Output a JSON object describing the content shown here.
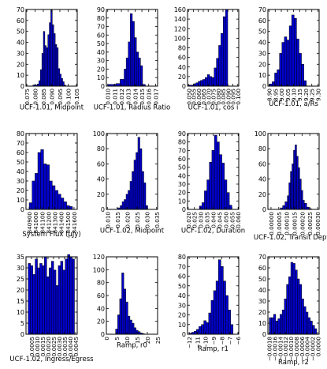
{
  "chart_data": [
    {
      "type": "bar",
      "xlabel": "UCF-1.01, Midpoint",
      "xlim": [
        0.0745,
        0.1055
      ],
      "ylim": [
        0,
        70
      ],
      "yticks": [
        "0",
        "10",
        "20",
        "30",
        "40",
        "50",
        "60",
        "70"
      ],
      "xticks": [
        "0.075",
        "0.080",
        "0.085",
        "0.090",
        "0.095",
        "0.100",
        "0.105"
      ],
      "xtick_values": [
        0.075,
        0.08,
        0.085,
        0.09,
        0.095,
        0.1,
        0.105
      ],
      "bin_edges": [
        0.0787,
        0.0814,
        0.0823,
        0.0832,
        0.0841,
        0.085,
        0.0859,
        0.0868,
        0.0877,
        0.0886,
        0.0895,
        0.0904,
        0.0913,
        0.0922,
        0.0931,
        0.094,
        0.0949,
        0.0958,
        0.0967,
        0.0976,
        0.0985
      ],
      "values": [
        1,
        2,
        5,
        15,
        30,
        50,
        37,
        35,
        47,
        58,
        70,
        56,
        48,
        38,
        35,
        16,
        11,
        7,
        4,
        1
      ]
    },
    {
      "type": "bar",
      "xlabel": "UCF-1.01, Radius Ratio",
      "xlim": [
        0.0098,
        0.0173
      ],
      "ylim": [
        0,
        90
      ],
      "yticks": [
        "0",
        "10",
        "20",
        "30",
        "40",
        "50",
        "60",
        "70",
        "80",
        "90"
      ],
      "xticks": [
        "0.010",
        "0.011",
        "0.012",
        "0.013",
        "0.014",
        "0.015",
        "0.016",
        "0.017"
      ],
      "xtick_values": [
        0.01,
        0.011,
        0.012,
        0.013,
        0.014,
        0.015,
        0.016,
        0.017
      ],
      "bin_edges": [
        0.01,
        0.0112,
        0.0118,
        0.0124,
        0.0127,
        0.013,
        0.0133,
        0.0136,
        0.0139,
        0.0142,
        0.0145,
        0.0148,
        0.0151,
        0.0155
      ],
      "values": [
        2,
        3,
        8,
        20,
        33,
        52,
        85,
        76,
        57,
        40,
        33,
        24,
        2
      ]
    },
    {
      "type": "bar",
      "xlabel": "UCF-1.01, cos i",
      "xlim": [
        0.049,
        0.101
      ],
      "ylim": [
        0,
        160
      ],
      "yticks": [
        "0",
        "20",
        "40",
        "60",
        "80",
        "100",
        "120",
        "140",
        "160"
      ],
      "xticks": [
        "0.050",
        "0.055",
        "0.060",
        "0.065",
        "0.070",
        "0.075",
        "0.080",
        "0.085",
        "0.090",
        "0.095",
        "0.100"
      ],
      "xtick_values": [
        0.05,
        0.055,
        0.06,
        0.065,
        0.07,
        0.075,
        0.08,
        0.085,
        0.09,
        0.095,
        0.1
      ],
      "bin_edges": [
        0.05,
        0.0553,
        0.0576,
        0.0599,
        0.0622,
        0.0645,
        0.0668,
        0.0691,
        0.0714,
        0.0737,
        0.076,
        0.0783,
        0.0806,
        0.0829,
        0.0852,
        0.0875,
        0.0898
      ],
      "values": [
        2,
        5,
        7,
        10,
        12,
        14,
        18,
        24,
        20,
        18,
        38,
        58,
        85,
        110,
        145,
        160
      ]
    },
    {
      "type": "bar",
      "xlabel": "UCF-1.01, a/Rs",
      "xlim": [
        8.89,
        9.31
      ],
      "ylim": [
        0,
        70
      ],
      "yticks": [
        "0",
        "10",
        "20",
        "30",
        "40",
        "50",
        "60",
        "70"
      ],
      "xticks": [
        "8.90",
        "8.95",
        "9.00",
        "9.05",
        "9.10",
        "9.15",
        "9.20",
        "9.25",
        "9.30"
      ],
      "xtick_values": [
        8.9,
        8.95,
        9.0,
        9.05,
        9.1,
        9.15,
        9.2,
        9.25,
        9.3
      ],
      "bin_edges": [
        8.905,
        8.925,
        8.945,
        8.965,
        8.985,
        9.005,
        9.025,
        9.045,
        9.065,
        9.085,
        9.105,
        9.125,
        9.145,
        9.165,
        9.185,
        9.205
      ],
      "values": [
        2,
        4,
        12,
        15,
        30,
        40,
        45,
        42,
        55,
        65,
        62,
        43,
        30,
        20,
        5
      ]
    },
    {
      "type": "bar",
      "xlabel": "System Flux (μJy)",
      "xlim": [
        840850,
        841650
      ],
      "ylim": [
        0,
        80
      ],
      "yticks": [
        "0",
        "10",
        "20",
        "30",
        "40",
        "50",
        "60",
        "70",
        "80"
      ],
      "xticks": [
        "840900",
        "841000",
        "841100",
        "841200",
        "841300",
        "841400",
        "841500",
        "841600"
      ],
      "xtick_values": [
        840900,
        841000,
        841100,
        841200,
        841300,
        841400,
        841500,
        841600
      ],
      "bin_edges": [
        840900,
        840945,
        840990,
        841035,
        841080,
        841125,
        841170,
        841215,
        841260,
        841305,
        841350,
        841395,
        841440,
        841485,
        841530,
        841575
      ],
      "values": [
        7,
        30,
        38,
        60,
        63,
        48,
        47,
        30,
        25,
        20,
        16,
        12,
        8,
        4,
        3
      ]
    },
    {
      "type": "bar",
      "xlabel": "UCF-1.02, Midpoint",
      "xlim": [
        0.0095,
        0.0355
      ],
      "ylim": [
        0,
        100
      ],
      "yticks": [
        "0",
        "20",
        "40",
        "60",
        "80",
        "100"
      ],
      "xticks": [
        "0.010",
        "0.015",
        "0.020",
        "0.025",
        "0.030",
        "0.035"
      ],
      "xtick_values": [
        0.01,
        0.015,
        0.02,
        0.025,
        0.03,
        0.035
      ],
      "bin_edges": [
        0.015,
        0.0165,
        0.0175,
        0.0185,
        0.0195,
        0.0205,
        0.0215,
        0.0225,
        0.0235,
        0.0245,
        0.0255,
        0.0265,
        0.0275,
        0.0285,
        0.0295,
        0.0305
      ],
      "values": [
        2,
        5,
        10,
        13,
        20,
        25,
        37,
        50,
        65,
        75,
        95,
        80,
        50,
        35,
        5
      ]
    },
    {
      "type": "bar",
      "xlabel": "UCF-1.02, Duration",
      "xlim": [
        0.0195,
        0.0605
      ],
      "ylim": [
        0,
        90
      ],
      "yticks": [
        "0",
        "10",
        "20",
        "30",
        "40",
        "50",
        "60",
        "70",
        "80",
        "90"
      ],
      "xticks": [
        "0.020",
        "0.025",
        "0.030",
        "0.035",
        "0.040",
        "0.045",
        "0.050",
        "0.055",
        "0.060"
      ],
      "xtick_values": [
        0.02,
        0.025,
        0.03,
        0.035,
        0.04,
        0.045,
        0.05,
        0.055,
        0.06
      ],
      "bin_edges": [
        0.029,
        0.031,
        0.033,
        0.035,
        0.037,
        0.039,
        0.041,
        0.043,
        0.045,
        0.047,
        0.049,
        0.051,
        0.053,
        0.055
      ],
      "values": [
        4,
        8,
        22,
        35,
        56,
        70,
        88,
        80,
        65,
        55,
        35,
        20,
        5
      ]
    },
    {
      "type": "bar",
      "xlabel": "UCF-1.02, Transit Depth",
      "xlim": [
        -2e-05,
        0.00031
      ],
      "ylim": [
        0,
        100
      ],
      "yticks": [
        "0",
        "20",
        "40",
        "60",
        "80",
        "100"
      ],
      "xticks": [
        "0.00000",
        "0.00005",
        "0.00010",
        "0.00015",
        "0.00020",
        "0.00025",
        "0.00030"
      ],
      "xtick_values": [
        0.0,
        5e-05,
        0.0001,
        0.00015,
        0.0002,
        0.00025,
        0.0003
      ],
      "bin_edges": [
        6e-05,
        7.5e-05,
        9e-05,
        0.000105,
        0.000115,
        0.000125,
        0.000135,
        0.000145,
        0.000155,
        0.000165,
        0.000175,
        0.000185,
        0.000195,
        0.000205,
        0.000215,
        0.00023,
        0.000245,
        0.00026
      ],
      "values": [
        2,
        5,
        10,
        18,
        35,
        50,
        60,
        78,
        85,
        70,
        55,
        40,
        25,
        12,
        8,
        3,
        1
      ]
    },
    {
      "type": "bar",
      "xlabel": "UCF-1.02, Ingress/Egress",
      "xlim": [
        0.0,
        0.00465
      ],
      "ylim": [
        0,
        35
      ],
      "yticks": [
        "0",
        "5",
        "10",
        "15",
        "20",
        "25",
        "30",
        "35"
      ],
      "xticks": [
        "0.0005",
        "0.0010",
        "0.0015",
        "0.0020",
        "0.0025",
        "0.0030",
        "0.0035",
        "0.0040",
        "0.0045"
      ],
      "xtick_values": [
        0.0005,
        0.001,
        0.0015,
        0.002,
        0.0025,
        0.003,
        0.0035,
        0.004,
        0.0045
      ],
      "bin_edges": [
        0.0002,
        0.00041,
        0.00062,
        0.00083,
        0.00104,
        0.00125,
        0.00146,
        0.00167,
        0.00188,
        0.00209,
        0.0023,
        0.00251,
        0.00272,
        0.00293,
        0.00314,
        0.00335,
        0.00356,
        0.00377,
        0.00398,
        0.00419,
        0.0044
      ],
      "values": [
        32,
        31,
        27,
        34,
        30,
        32,
        31,
        35,
        26,
        30,
        33,
        29,
        22,
        31,
        33,
        29,
        34,
        36,
        35,
        34
      ]
    },
    {
      "type": "bar",
      "xlabel": "Ramp, r0",
      "xlim": [
        0,
        25
      ],
      "ylim": [
        0,
        120
      ],
      "yticks": [
        "0",
        "20",
        "40",
        "60",
        "80",
        "100",
        "120"
      ],
      "xticks": [
        "0",
        "5",
        "10",
        "15",
        "20",
        "25"
      ],
      "xtick_values": [
        0,
        5,
        10,
        15,
        20,
        25
      ],
      "bin_edges": [
        4.5,
        5.5,
        6.5,
        7.5,
        8.5,
        9.5,
        10.5,
        11.5,
        12.5,
        13.5,
        14.5,
        15.5,
        16.5,
        17.5,
        18.5
      ],
      "values": [
        8,
        30,
        55,
        95,
        70,
        50,
        28,
        22,
        17,
        10,
        6,
        4,
        2,
        1
      ]
    },
    {
      "type": "bar",
      "xlabel": "Ramp, r1",
      "xlim": [
        -12.2,
        -5.9
      ],
      "ylim": [
        0,
        80
      ],
      "yticks": [
        "0",
        "10",
        "20",
        "30",
        "40",
        "50",
        "60",
        "70",
        "80"
      ],
      "xticks": [
        "−12",
        "−11",
        "−10",
        "−9",
        "−8",
        "−7",
        "−6"
      ],
      "xtick_values": [
        -12,
        -11,
        -10,
        -9,
        -8,
        -7,
        -6
      ],
      "bin_edges": [
        -12.0,
        -11.7,
        -11.4,
        -11.1,
        -10.8,
        -10.5,
        -10.2,
        -9.9,
        -9.6,
        -9.3,
        -9.0,
        -8.7,
        -8.4,
        -8.1,
        -7.8,
        -7.5,
        -7.2,
        -6.9,
        -6.6
      ],
      "values": [
        1,
        2,
        3,
        5,
        8,
        10,
        14,
        12,
        22,
        35,
        45,
        55,
        77,
        70,
        55,
        40,
        25,
        10
      ]
    },
    {
      "type": "bar",
      "xlabel": "Ramp, r2",
      "xlim": [
        -0.00185,
        5e-05
      ],
      "ylim": [
        0,
        70
      ],
      "yticks": [
        "0",
        "10",
        "20",
        "30",
        "40",
        "50",
        "60",
        "70"
      ],
      "xticks": [
        "−0.0018",
        "−0.0016",
        "−0.0014",
        "−0.0012",
        "−0.0010",
        "−0.0008",
        "−0.0006",
        "−0.0004",
        "−0.0002",
        "0.0000"
      ],
      "xtick_values": [
        -0.0018,
        -0.0016,
        -0.0014,
        -0.0012,
        -0.001,
        -0.0008,
        -0.0006,
        -0.0004,
        -0.0002,
        0.0
      ],
      "bin_edges": [
        -0.0018,
        -0.00172,
        -0.00164,
        -0.00156,
        -0.00148,
        -0.0014,
        -0.00132,
        -0.00124,
        -0.00116,
        -0.00108,
        -0.001,
        -0.00092,
        -0.00084,
        -0.00076,
        -0.00068,
        -0.0006,
        -0.00052,
        -0.00044,
        -0.00036,
        -0.00028,
        -0.0002,
        -0.00012,
        -4e-05
      ],
      "values": [
        15,
        15,
        18,
        12,
        14,
        18,
        22,
        32,
        45,
        52,
        65,
        64,
        58,
        50,
        45,
        32,
        25,
        20,
        15,
        12,
        8,
        5
      ]
    }
  ],
  "colors": {
    "bar_fill": "#0000cc",
    "bar_edge": "#000000",
    "axes": "#000000"
  }
}
